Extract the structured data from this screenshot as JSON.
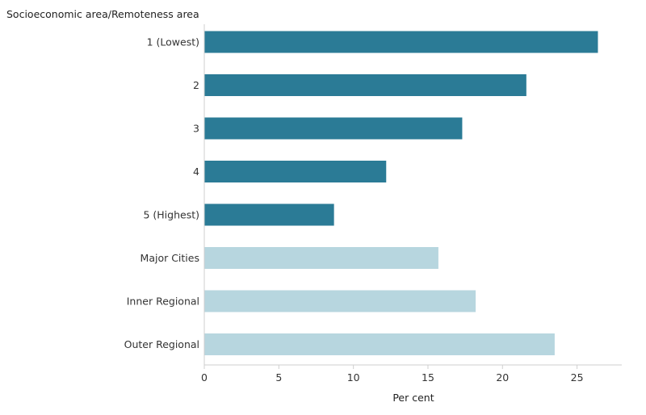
{
  "chart_data": {
    "type": "bar",
    "orientation": "horizontal",
    "ylabel": "Socioeconomic area/Remoteness area",
    "xlabel": "Per cent",
    "categories": [
      "1 (Lowest)",
      "2",
      "3",
      "4",
      "5 (Highest)",
      "Major Cities",
      "Inner Regional",
      "Outer Regional"
    ],
    "values": [
      26.4,
      21.6,
      17.3,
      12.2,
      8.7,
      15.7,
      18.2,
      23.5
    ],
    "groups": [
      "socioeconomic",
      "socioeconomic",
      "socioeconomic",
      "socioeconomic",
      "socioeconomic",
      "remoteness",
      "remoteness",
      "remoteness"
    ],
    "colors": {
      "socioeconomic": "#2b7b96",
      "remoteness": "#b7d6df"
    },
    "xlim": [
      0,
      28
    ],
    "xticks": [
      0,
      5,
      10,
      15,
      20,
      25
    ],
    "grid": false
  }
}
